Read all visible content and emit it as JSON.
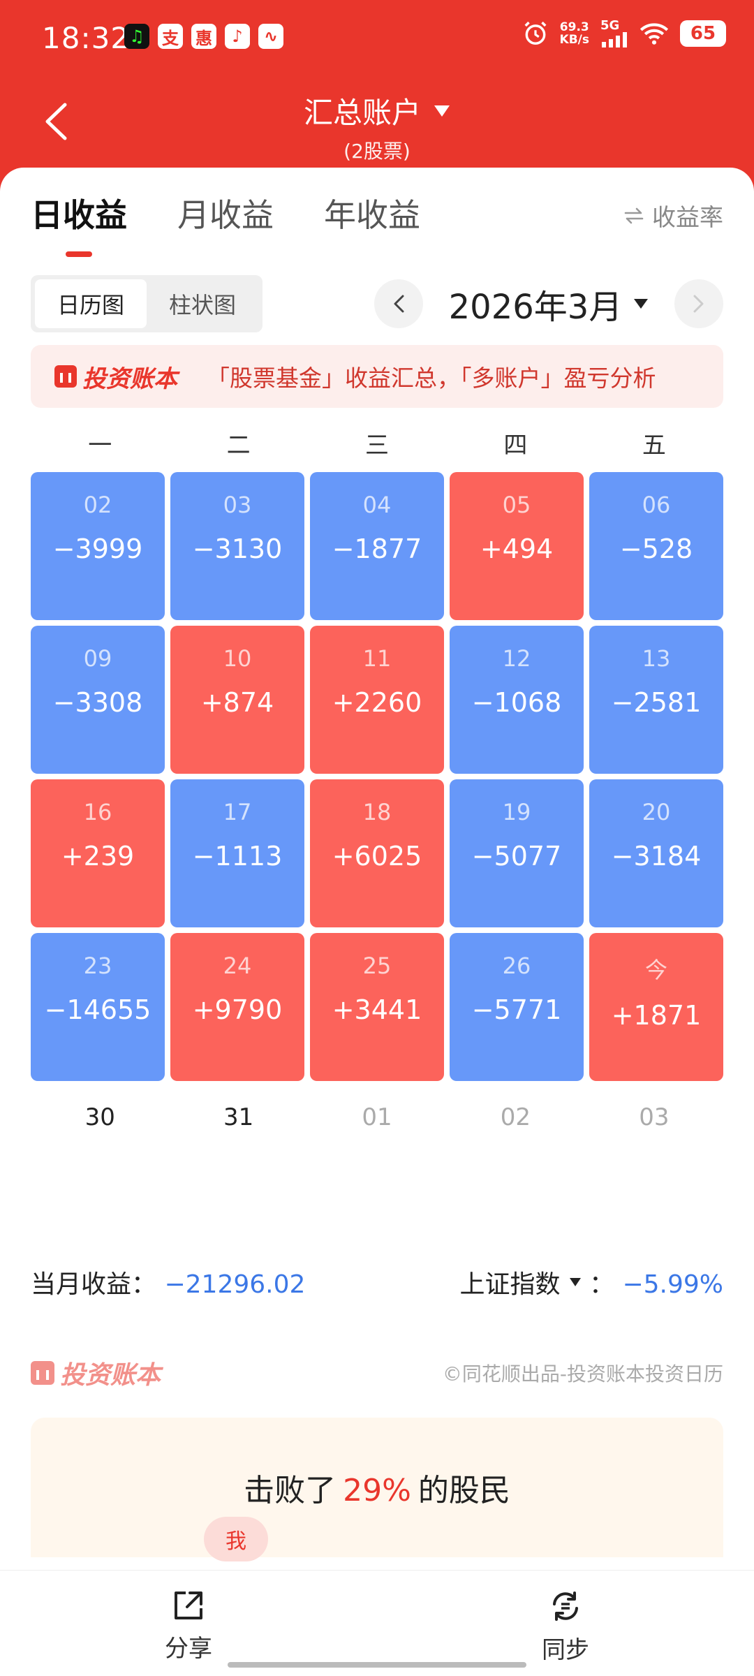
{
  "status": {
    "time": "18:32",
    "apps": [
      "支",
      "惠",
      "♪",
      "∿"
    ],
    "net_speed_value": "69.3",
    "net_speed_unit": "KB/s",
    "network": "5G",
    "battery": "65",
    "icons": [
      "alarm-icon",
      "signal-icon",
      "wifi-icon"
    ]
  },
  "header": {
    "title": "汇总账户",
    "subtitle": "(2股票)"
  },
  "tabs": [
    "日收益",
    "月收益",
    "年收益"
  ],
  "yield_toggle": "收益率",
  "view": {
    "calendar": "日历图",
    "bar": "柱状图"
  },
  "month": "2026年3月",
  "promo": {
    "brand": "投资账本",
    "text": "「股票基金」收益汇总，「多账户」盈亏分析"
  },
  "weekdays": [
    "一",
    "二",
    "三",
    "四",
    "五"
  ],
  "days": [
    {
      "date": "02",
      "value": "−3999",
      "kind": "loss"
    },
    {
      "date": "03",
      "value": "−3130",
      "kind": "loss"
    },
    {
      "date": "04",
      "value": "−1877",
      "kind": "loss"
    },
    {
      "date": "05",
      "value": "+494",
      "kind": "gain"
    },
    {
      "date": "06",
      "value": "−528",
      "kind": "loss"
    },
    {
      "date": "09",
      "value": "−3308",
      "kind": "loss"
    },
    {
      "date": "10",
      "value": "+874",
      "kind": "gain"
    },
    {
      "date": "11",
      "value": "+2260",
      "kind": "gain"
    },
    {
      "date": "12",
      "value": "−1068",
      "kind": "loss"
    },
    {
      "date": "13",
      "value": "−2581",
      "kind": "loss"
    },
    {
      "date": "16",
      "value": "+239",
      "kind": "gain"
    },
    {
      "date": "17",
      "value": "−1113",
      "kind": "loss"
    },
    {
      "date": "18",
      "value": "+6025",
      "kind": "gain"
    },
    {
      "date": "19",
      "value": "−5077",
      "kind": "loss"
    },
    {
      "date": "20",
      "value": "−3184",
      "kind": "loss"
    },
    {
      "date": "23",
      "value": "−14655",
      "kind": "loss"
    },
    {
      "date": "24",
      "value": "+9790",
      "kind": "gain"
    },
    {
      "date": "25",
      "value": "+3441",
      "kind": "gain"
    },
    {
      "date": "26",
      "value": "−5771",
      "kind": "loss"
    },
    {
      "date": "今",
      "value": "+1871",
      "kind": "gain"
    }
  ],
  "next_days": [
    {
      "date": "30",
      "dim": false
    },
    {
      "date": "31",
      "dim": false
    },
    {
      "date": "01",
      "dim": true
    },
    {
      "date": "02",
      "dim": true
    },
    {
      "date": "03",
      "dim": true
    }
  ],
  "summary": {
    "month_label": "当月收益：",
    "month_value": "−21296.02",
    "index_label": "上证指数",
    "index_sep": "：",
    "index_value": "−5.99%"
  },
  "footer_brand": {
    "brand": "投资账本",
    "copyright": "©同花顺出品-投资账本投资日历"
  },
  "beat": {
    "prefix": "击败了",
    "percent": "29%",
    "suffix": "的股民",
    "me": "我"
  },
  "bottom": {
    "share": "分享",
    "sync": "同步"
  },
  "colors": {
    "brand_red": "#e9362c",
    "gain": "#fc635b",
    "loss": "#6798f9",
    "negative_text": "#3b77e6"
  }
}
